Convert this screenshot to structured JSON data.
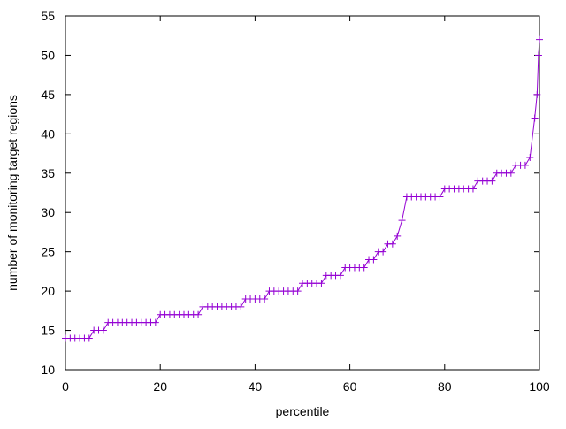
{
  "chart_data": {
    "type": "line",
    "color": "#9400d3",
    "marker": "+",
    "xlabel": "percentile",
    "ylabel": "number of monitoring target regions",
    "xlim": [
      0,
      100
    ],
    "ylim": [
      10,
      55
    ],
    "xticks": [
      0,
      20,
      40,
      60,
      80,
      100
    ],
    "yticks": [
      10,
      15,
      20,
      25,
      30,
      35,
      40,
      45,
      50,
      55
    ],
    "x": [
      0,
      1,
      2,
      3,
      4,
      5,
      6,
      7,
      8,
      9,
      10,
      11,
      12,
      13,
      14,
      15,
      16,
      17,
      18,
      19,
      20,
      21,
      22,
      23,
      24,
      25,
      26,
      27,
      28,
      29,
      30,
      31,
      32,
      33,
      34,
      35,
      36,
      37,
      38,
      39,
      40,
      41,
      42,
      43,
      44,
      45,
      46,
      47,
      48,
      49,
      50,
      51,
      52,
      53,
      54,
      55,
      56,
      57,
      58,
      59,
      60,
      61,
      62,
      63,
      64,
      65,
      66,
      67,
      68,
      69,
      70,
      71,
      72,
      73,
      74,
      75,
      76,
      77,
      78,
      79,
      80,
      81,
      82,
      83,
      84,
      85,
      86,
      87,
      88,
      89,
      90,
      91,
      92,
      93,
      94,
      95,
      96,
      97,
      98,
      99,
      99.5,
      99.8,
      100
    ],
    "values": [
      14,
      14,
      14,
      14,
      14,
      14,
      15,
      15,
      15,
      16,
      16,
      16,
      16,
      16,
      16,
      16,
      16,
      16,
      16,
      16,
      17,
      17,
      17,
      17,
      17,
      17,
      17,
      17,
      17,
      18,
      18,
      18,
      18,
      18,
      18,
      18,
      18,
      18,
      19,
      19,
      19,
      19,
      19,
      20,
      20,
      20,
      20,
      20,
      20,
      20,
      21,
      21,
      21,
      21,
      21,
      22,
      22,
      22,
      22,
      23,
      23,
      23,
      23,
      23,
      24,
      24,
      25,
      25,
      26,
      26,
      27,
      29,
      32,
      32,
      32,
      32,
      32,
      32,
      32,
      32,
      33,
      33,
      33,
      33,
      33,
      33,
      33,
      34,
      34,
      34,
      34,
      35,
      35,
      35,
      35,
      36,
      36,
      36,
      37,
      42,
      45,
      50,
      52
    ]
  }
}
